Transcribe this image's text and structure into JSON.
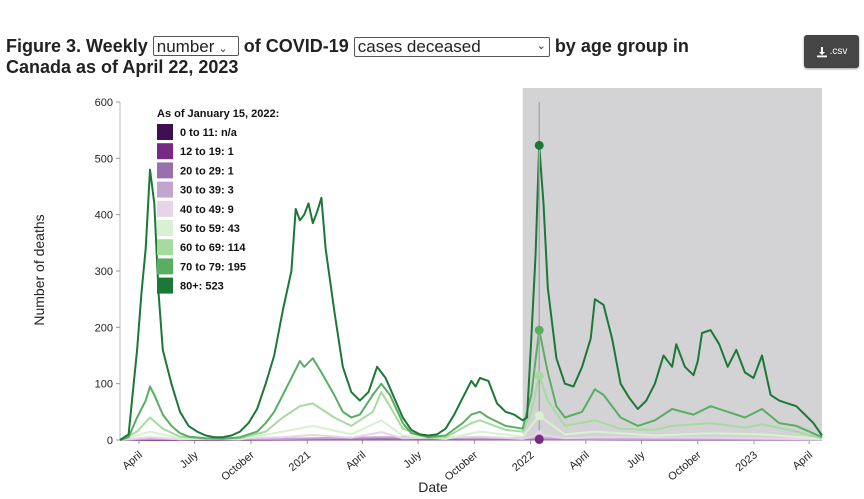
{
  "title": {
    "prefix": "Figure 3. Weekly",
    "metric_select": "number",
    "middle": "of COVID-19",
    "outcome_select": "cases deceased",
    "suffix": "by age group in",
    "line2": "Canada as of April 22, 2023"
  },
  "download": {
    "label": ".csv",
    "icon": "download-icon"
  },
  "chart_data": {
    "type": "line",
    "ylabel": "Number of deaths",
    "xlabel": "Date",
    "ylim": [
      0,
      600
    ],
    "yticks": [
      0,
      100,
      200,
      300,
      400,
      500,
      600
    ],
    "xticks": [
      "2020-04-01",
      "2020-07-01",
      "2020-10-01",
      "2021-01-01",
      "2021-04-01",
      "2021-07-01",
      "2021-10-01",
      "2022-01-01",
      "2022-04-01",
      "2022-07-01",
      "2022-10-01",
      "2023-01-01",
      "2023-04-01"
    ],
    "xtick_labels": [
      "April",
      "July",
      "October",
      "2021",
      "April",
      "July",
      "October",
      "2022",
      "April",
      "July",
      "October",
      "2023",
      "April"
    ],
    "xlim": [
      "2020-03-01",
      "2023-04-22"
    ],
    "shaded_region": {
      "start": "2021-12-19",
      "end": "2023-04-22",
      "color": "#d3d3d5"
    },
    "hover_date": "2022-01-15",
    "legend": {
      "title": "As of January 15, 2022:",
      "entries": [
        {
          "label": "0 to 11: n/a",
          "color": "#3f0f50"
        },
        {
          "label": "12 to 19: 1",
          "color": "#762a83"
        },
        {
          "label": "20 to 29: 1",
          "color": "#9970ab"
        },
        {
          "label": "30 to 39: 3",
          "color": "#c2a5cf"
        },
        {
          "label": "40 to 49: 9",
          "color": "#e7d4e8"
        },
        {
          "label": "50 to 59: 43",
          "color": "#d9f0d3"
        },
        {
          "label": "60 to 69: 114",
          "color": "#a6dba0"
        },
        {
          "label": "70 to 79: 195",
          "color": "#5aae61"
        },
        {
          "label": "80+: 523",
          "color": "#1b7837"
        }
      ]
    },
    "series": [
      {
        "name": "80+",
        "color": "#1b7837",
        "points": [
          [
            "2020-03-01",
            0
          ],
          [
            "2020-03-15",
            10
          ],
          [
            "2020-03-29",
            160
          ],
          [
            "2020-04-05",
            260
          ],
          [
            "2020-04-12",
            340
          ],
          [
            "2020-04-19",
            480
          ],
          [
            "2020-04-26",
            420
          ],
          [
            "2020-05-03",
            260
          ],
          [
            "2020-05-10",
            160
          ],
          [
            "2020-05-17",
            130
          ],
          [
            "2020-05-24",
            100
          ],
          [
            "2020-06-07",
            50
          ],
          [
            "2020-06-21",
            25
          ],
          [
            "2020-07-05",
            15
          ],
          [
            "2020-07-19",
            8
          ],
          [
            "2020-08-02",
            5
          ],
          [
            "2020-08-16",
            5
          ],
          [
            "2020-08-30",
            8
          ],
          [
            "2020-09-13",
            15
          ],
          [
            "2020-09-27",
            30
          ],
          [
            "2020-10-11",
            55
          ],
          [
            "2020-10-25",
            100
          ],
          [
            "2020-11-08",
            150
          ],
          [
            "2020-11-22",
            230
          ],
          [
            "2020-12-06",
            300
          ],
          [
            "2020-12-13",
            410
          ],
          [
            "2020-12-20",
            390
          ],
          [
            "2020-12-27",
            400
          ],
          [
            "2021-01-03",
            420
          ],
          [
            "2021-01-10",
            385
          ],
          [
            "2021-01-17",
            405
          ],
          [
            "2021-01-24",
            430
          ],
          [
            "2021-01-31",
            340
          ],
          [
            "2021-02-14",
            230
          ],
          [
            "2021-02-28",
            130
          ],
          [
            "2021-03-14",
            85
          ],
          [
            "2021-03-28",
            70
          ],
          [
            "2021-04-11",
            85
          ],
          [
            "2021-04-25",
            130
          ],
          [
            "2021-05-09",
            110
          ],
          [
            "2021-05-23",
            75
          ],
          [
            "2021-06-06",
            40
          ],
          [
            "2021-06-20",
            18
          ],
          [
            "2021-07-04",
            10
          ],
          [
            "2021-07-18",
            8
          ],
          [
            "2021-08-01",
            10
          ],
          [
            "2021-08-15",
            20
          ],
          [
            "2021-08-29",
            45
          ],
          [
            "2021-09-12",
            75
          ],
          [
            "2021-09-26",
            105
          ],
          [
            "2021-10-03",
            95
          ],
          [
            "2021-10-10",
            110
          ],
          [
            "2021-10-24",
            105
          ],
          [
            "2021-11-07",
            65
          ],
          [
            "2021-11-21",
            50
          ],
          [
            "2021-12-05",
            45
          ],
          [
            "2021-12-19",
            35
          ],
          [
            "2021-12-26",
            40
          ],
          [
            "2022-01-02",
            180
          ],
          [
            "2022-01-09",
            330
          ],
          [
            "2022-01-15",
            523
          ],
          [
            "2022-01-22",
            420
          ],
          [
            "2022-01-29",
            270
          ],
          [
            "2022-02-12",
            145
          ],
          [
            "2022-02-26",
            100
          ],
          [
            "2022-03-12",
            95
          ],
          [
            "2022-03-26",
            130
          ],
          [
            "2022-04-09",
            180
          ],
          [
            "2022-04-16",
            250
          ],
          [
            "2022-04-30",
            240
          ],
          [
            "2022-05-14",
            180
          ],
          [
            "2022-05-28",
            100
          ],
          [
            "2022-06-11",
            75
          ],
          [
            "2022-06-25",
            55
          ],
          [
            "2022-07-09",
            70
          ],
          [
            "2022-07-23",
            100
          ],
          [
            "2022-08-06",
            150
          ],
          [
            "2022-08-20",
            130
          ],
          [
            "2022-08-27",
            170
          ],
          [
            "2022-09-10",
            130
          ],
          [
            "2022-09-24",
            115
          ],
          [
            "2022-10-01",
            140
          ],
          [
            "2022-10-08",
            190
          ],
          [
            "2022-10-22",
            195
          ],
          [
            "2022-11-05",
            170
          ],
          [
            "2022-11-19",
            130
          ],
          [
            "2022-12-03",
            160
          ],
          [
            "2022-12-17",
            120
          ],
          [
            "2022-12-31",
            110
          ],
          [
            "2023-01-14",
            150
          ],
          [
            "2023-01-28",
            80
          ],
          [
            "2023-02-11",
            70
          ],
          [
            "2023-02-25",
            65
          ],
          [
            "2023-03-11",
            60
          ],
          [
            "2023-03-25",
            45
          ],
          [
            "2023-04-08",
            30
          ],
          [
            "2023-04-22",
            8
          ]
        ]
      },
      {
        "name": "70 to 79",
        "color": "#5aae61",
        "points": [
          [
            "2020-03-01",
            0
          ],
          [
            "2020-03-15",
            5
          ],
          [
            "2020-03-29",
            40
          ],
          [
            "2020-04-12",
            70
          ],
          [
            "2020-04-19",
            95
          ],
          [
            "2020-04-26",
            80
          ],
          [
            "2020-05-10",
            45
          ],
          [
            "2020-05-24",
            25
          ],
          [
            "2020-06-07",
            12
          ],
          [
            "2020-06-21",
            6
          ],
          [
            "2020-07-19",
            3
          ],
          [
            "2020-08-16",
            2
          ],
          [
            "2020-09-13",
            5
          ],
          [
            "2020-10-11",
            15
          ],
          [
            "2020-10-25",
            30
          ],
          [
            "2020-11-08",
            50
          ],
          [
            "2020-11-22",
            80
          ],
          [
            "2020-12-06",
            110
          ],
          [
            "2020-12-20",
            140
          ],
          [
            "2020-12-27",
            130
          ],
          [
            "2021-01-10",
            145
          ],
          [
            "2021-01-24",
            120
          ],
          [
            "2021-02-14",
            80
          ],
          [
            "2021-02-28",
            50
          ],
          [
            "2021-03-14",
            40
          ],
          [
            "2021-03-28",
            45
          ],
          [
            "2021-04-18",
            80
          ],
          [
            "2021-05-02",
            100
          ],
          [
            "2021-05-16",
            80
          ],
          [
            "2021-06-06",
            30
          ],
          [
            "2021-06-20",
            12
          ],
          [
            "2021-07-18",
            5
          ],
          [
            "2021-08-15",
            8
          ],
          [
            "2021-09-12",
            30
          ],
          [
            "2021-09-26",
            45
          ],
          [
            "2021-10-10",
            50
          ],
          [
            "2021-10-24",
            40
          ],
          [
            "2021-11-21",
            25
          ],
          [
            "2021-12-19",
            20
          ],
          [
            "2022-01-02",
            80
          ],
          [
            "2022-01-15",
            195
          ],
          [
            "2022-01-29",
            120
          ],
          [
            "2022-02-12",
            60
          ],
          [
            "2022-02-26",
            40
          ],
          [
            "2022-03-26",
            50
          ],
          [
            "2022-04-16",
            90
          ],
          [
            "2022-04-30",
            80
          ],
          [
            "2022-05-28",
            40
          ],
          [
            "2022-06-25",
            25
          ],
          [
            "2022-07-23",
            35
          ],
          [
            "2022-08-20",
            55
          ],
          [
            "2022-09-24",
            45
          ],
          [
            "2022-10-22",
            60
          ],
          [
            "2022-11-19",
            50
          ],
          [
            "2022-12-17",
            40
          ],
          [
            "2023-01-14",
            55
          ],
          [
            "2023-02-11",
            30
          ],
          [
            "2023-03-11",
            25
          ],
          [
            "2023-04-22",
            5
          ]
        ]
      },
      {
        "name": "60 to 69",
        "color": "#a6dba0",
        "points": [
          [
            "2020-03-01",
            0
          ],
          [
            "2020-03-29",
            15
          ],
          [
            "2020-04-19",
            40
          ],
          [
            "2020-05-10",
            20
          ],
          [
            "2020-06-07",
            6
          ],
          [
            "2020-07-19",
            2
          ],
          [
            "2020-09-13",
            3
          ],
          [
            "2020-10-25",
            15
          ],
          [
            "2020-11-22",
            40
          ],
          [
            "2020-12-20",
            60
          ],
          [
            "2021-01-10",
            65
          ],
          [
            "2021-02-14",
            40
          ],
          [
            "2021-03-14",
            25
          ],
          [
            "2021-04-18",
            50
          ],
          [
            "2021-05-02",
            85
          ],
          [
            "2021-05-16",
            60
          ],
          [
            "2021-06-06",
            20
          ],
          [
            "2021-07-18",
            4
          ],
          [
            "2021-08-15",
            5
          ],
          [
            "2021-09-26",
            30
          ],
          [
            "2021-10-10",
            35
          ],
          [
            "2021-11-21",
            18
          ],
          [
            "2021-12-19",
            15
          ],
          [
            "2022-01-02",
            50
          ],
          [
            "2022-01-15",
            114
          ],
          [
            "2022-01-29",
            70
          ],
          [
            "2022-02-26",
            25
          ],
          [
            "2022-04-16",
            35
          ],
          [
            "2022-05-28",
            20
          ],
          [
            "2022-07-23",
            18
          ],
          [
            "2022-08-20",
            25
          ],
          [
            "2022-10-22",
            30
          ],
          [
            "2022-12-17",
            22
          ],
          [
            "2023-01-14",
            28
          ],
          [
            "2023-03-11",
            15
          ],
          [
            "2023-04-22",
            3
          ]
        ]
      },
      {
        "name": "50 to 59",
        "color": "#d9f0d3",
        "points": [
          [
            "2020-03-01",
            0
          ],
          [
            "2020-04-19",
            15
          ],
          [
            "2020-06-07",
            3
          ],
          [
            "2020-09-13",
            1
          ],
          [
            "2020-11-22",
            15
          ],
          [
            "2021-01-10",
            25
          ],
          [
            "2021-03-14",
            10
          ],
          [
            "2021-05-02",
            35
          ],
          [
            "2021-06-06",
            8
          ],
          [
            "2021-08-15",
            2
          ],
          [
            "2021-10-10",
            15
          ],
          [
            "2021-12-19",
            6
          ],
          [
            "2022-01-15",
            43
          ],
          [
            "2022-02-26",
            10
          ],
          [
            "2022-04-16",
            15
          ],
          [
            "2022-07-23",
            8
          ],
          [
            "2022-10-22",
            12
          ],
          [
            "2023-01-14",
            10
          ],
          [
            "2023-04-22",
            2
          ]
        ]
      },
      {
        "name": "40 to 49",
        "color": "#e7d4e8",
        "points": [
          [
            "2020-03-01",
            0
          ],
          [
            "2020-04-19",
            5
          ],
          [
            "2020-06-07",
            1
          ],
          [
            "2020-11-22",
            5
          ],
          [
            "2021-01-10",
            9
          ],
          [
            "2021-03-14",
            4
          ],
          [
            "2021-05-02",
            14
          ],
          [
            "2021-06-06",
            3
          ],
          [
            "2021-10-10",
            6
          ],
          [
            "2021-12-19",
            2
          ],
          [
            "2022-01-15",
            9
          ],
          [
            "2022-02-26",
            3
          ],
          [
            "2022-04-16",
            5
          ],
          [
            "2022-10-22",
            4
          ],
          [
            "2023-04-22",
            1
          ]
        ]
      },
      {
        "name": "30 to 39",
        "color": "#c2a5cf",
        "points": [
          [
            "2020-03-01",
            0
          ],
          [
            "2020-04-19",
            2
          ],
          [
            "2020-11-22",
            2
          ],
          [
            "2021-01-10",
            3
          ],
          [
            "2021-05-02",
            5
          ],
          [
            "2021-10-10",
            3
          ],
          [
            "2022-01-15",
            3
          ],
          [
            "2022-04-16",
            2
          ],
          [
            "2023-04-22",
            0
          ]
        ]
      },
      {
        "name": "20 to 29",
        "color": "#9970ab",
        "points": [
          [
            "2020-03-01",
            0
          ],
          [
            "2020-04-19",
            1
          ],
          [
            "2021-01-10",
            1
          ],
          [
            "2021-05-02",
            2
          ],
          [
            "2022-01-15",
            1
          ],
          [
            "2023-04-22",
            0
          ]
        ]
      },
      {
        "name": "12 to 19",
        "color": "#762a83",
        "points": [
          [
            "2020-03-01",
            0
          ],
          [
            "2021-05-02",
            1
          ],
          [
            "2022-01-15",
            1
          ],
          [
            "2023-04-22",
            0
          ]
        ]
      }
    ]
  }
}
